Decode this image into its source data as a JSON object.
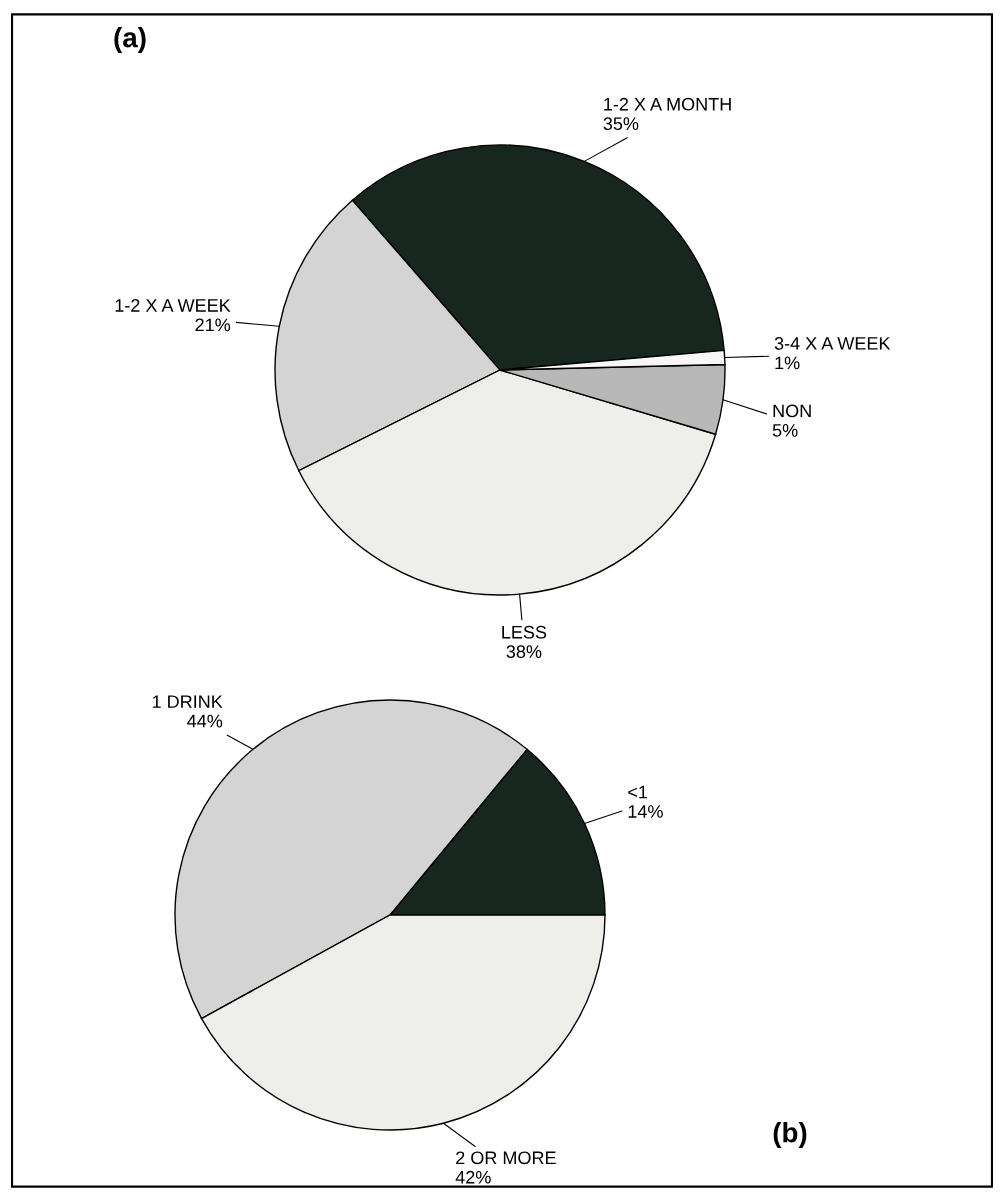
{
  "chart_data": [
    {
      "type": "pie",
      "title": "(a)",
      "categories": [
        "1-2 X A MONTH",
        "1-2 X A WEEK",
        "LESS",
        "NON",
        "3-4 X A WEEK"
      ],
      "values": [
        35,
        21,
        38,
        5,
        1
      ],
      "value_labels": [
        "35%",
        "21%",
        "38%",
        "5%",
        "1%"
      ],
      "colors": [
        "#17261f",
        "#d4d4d4",
        "#eeeeea",
        "#b8b8b8",
        "#f7f7f7"
      ]
    },
    {
      "type": "pie",
      "title": "(b)",
      "categories": [
        "<1",
        "1 DRINK",
        "2 OR MORE"
      ],
      "values": [
        14,
        44,
        42
      ],
      "value_labels": [
        "14%",
        "44%",
        "42%"
      ],
      "colors": [
        "#17261f",
        "#d4d4d4",
        "#eeeeea"
      ]
    }
  ]
}
